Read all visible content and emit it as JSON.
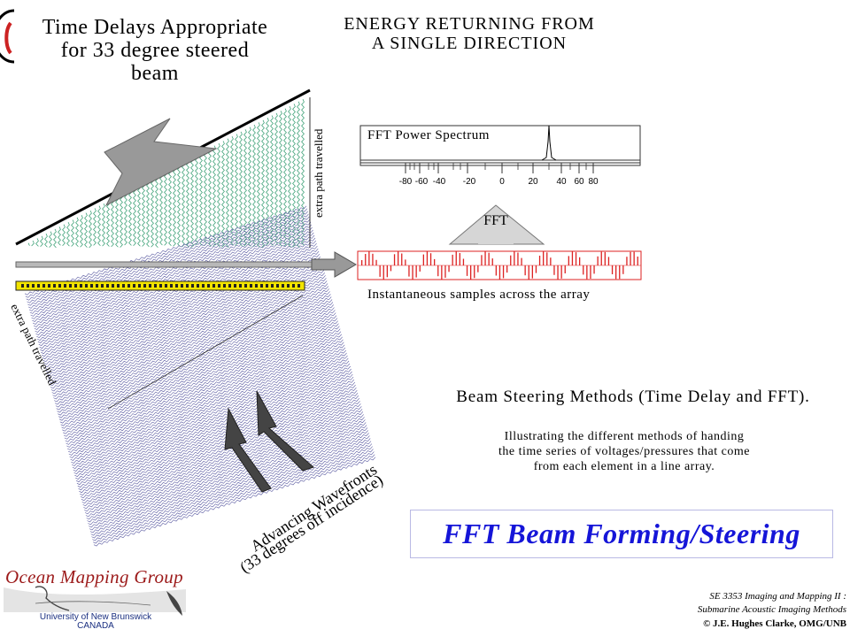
{
  "slide": {
    "title_left": [
      "Time Delays Appropriate",
      "for 33 degree steered",
      "beam"
    ],
    "title_right": [
      "ENERGY RETURNING FROM",
      "A SINGLE DIRECTION"
    ],
    "fft_spectrum_label": "FFT Power Spectrum",
    "fft_ticks": [
      "-80",
      "-60",
      "-40",
      "-20",
      "0",
      "20",
      "40",
      "60",
      "80"
    ],
    "fft_arrow_label": "FFT",
    "samples_label": "Instantaneous samples across the array",
    "extra_path_upper": "extra path travelled",
    "extra_path_lower": "extra path travelled",
    "wavefront_label": [
      "Advancing Wavefronts",
      "(33 degrees off incidence)"
    ],
    "methods_title": "Beam Steering Methods (Time Delay and FFT).",
    "methods_desc": [
      "Illustrating the different methods of handing",
      "the time series of voltages/pressures that come",
      "from each element in a line array."
    ],
    "banner": "FFT Beam Forming/Steering",
    "course": [
      "SE 3353 Imaging and Mapping II :",
      "Submarine Acoustic Imaging Methods"
    ],
    "copyright": "© J.E. Hughes Clarke, OMG/UNB",
    "logo_title": "Ocean Mapping Group",
    "logo_sub": [
      "University of New Brunswick",
      "CANADA"
    ],
    "colors": {
      "green_wave": "#2e9a6c",
      "blue_wave": "#5c5ca2",
      "array_yellow": "#f2e400",
      "banner_text": "#1515d8",
      "samples_red": "#dd2222",
      "arrow_gray": "#999999"
    }
  }
}
